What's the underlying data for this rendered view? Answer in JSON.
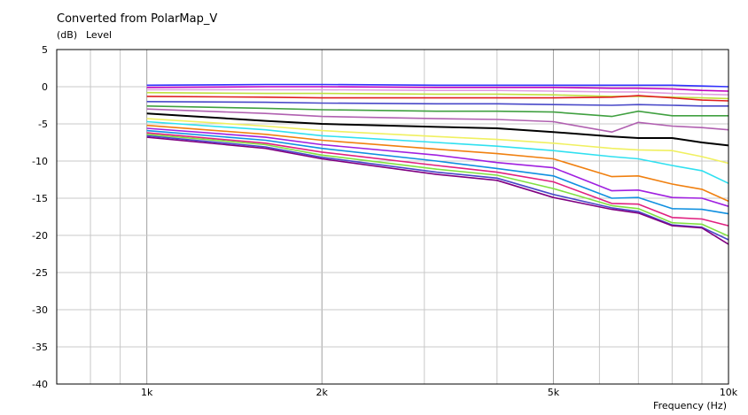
{
  "chart_data": {
    "type": "line",
    "title": "Converted from PolarMap_V",
    "ylabel_unit": "(dB)",
    "ylabel": "Level",
    "xlabel": "Frequency  (Hz)",
    "x_scale": "log",
    "xlim": [
      700,
      10000
    ],
    "ylim": [
      -40,
      5
    ],
    "grid": true,
    "x_ticks": [
      {
        "value": 1000,
        "label": "1k"
      },
      {
        "value": 2000,
        "label": "2k"
      },
      {
        "value": 5000,
        "label": "5k"
      },
      {
        "value": 10000,
        "label": "10k"
      }
    ],
    "y_ticks": [
      {
        "value": 5,
        "label": "5"
      },
      {
        "value": 0,
        "label": "0"
      },
      {
        "value": -5,
        "label": "-5"
      },
      {
        "value": -10,
        "label": "-10"
      },
      {
        "value": -15,
        "label": "-15"
      },
      {
        "value": -20,
        "label": "-20"
      },
      {
        "value": -25,
        "label": "-25"
      },
      {
        "value": -30,
        "label": "-30"
      },
      {
        "value": -35,
        "label": "-35"
      },
      {
        "value": -40,
        "label": "-40"
      }
    ],
    "x": [
      1000,
      1600,
      2000,
      3150,
      4000,
      5000,
      6300,
      7000,
      8000,
      9000,
      10000
    ],
    "series": [
      {
        "color": "#3030ff",
        "values": [
          0.2,
          0.3,
          0.3,
          0.2,
          0.2,
          0.2,
          0.2,
          0.2,
          0.2,
          0.1,
          0.0
        ]
      },
      {
        "color": "#c000c0",
        "values": [
          -0.1,
          0.0,
          0.0,
          -0.1,
          -0.1,
          -0.1,
          -0.2,
          -0.2,
          -0.3,
          -0.5,
          -0.6
        ]
      },
      {
        "color": "#e0a0e0",
        "values": [
          -0.4,
          -0.4,
          -0.4,
          -0.5,
          -0.5,
          -0.6,
          -0.7,
          -0.7,
          -0.9,
          -1.0,
          -1.1
        ]
      },
      {
        "color": "#c0e040",
        "values": [
          -0.8,
          -0.9,
          -0.9,
          -1.0,
          -1.0,
          -1.1,
          -1.3,
          -1.3,
          -1.4,
          -1.5,
          -1.6
        ]
      },
      {
        "color": "#e02020",
        "values": [
          -1.3,
          -1.4,
          -1.5,
          -1.5,
          -1.5,
          -1.5,
          -1.4,
          -1.2,
          -1.5,
          -1.8,
          -1.9
        ]
      },
      {
        "color": "#4848c8",
        "values": [
          -2.0,
          -2.1,
          -2.2,
          -2.3,
          -2.3,
          -2.4,
          -2.5,
          -2.4,
          -2.5,
          -2.6,
          -2.6
        ]
      },
      {
        "color": "#40a040",
        "values": [
          -2.6,
          -2.9,
          -3.1,
          -3.3,
          -3.3,
          -3.4,
          -4.0,
          -3.3,
          -3.9,
          -3.9,
          -3.9
        ]
      },
      {
        "color": "#b060b0",
        "values": [
          -3.0,
          -3.6,
          -4.0,
          -4.3,
          -4.4,
          -4.7,
          -6.1,
          -4.8,
          -5.3,
          -5.5,
          -5.8
        ]
      },
      {
        "color": "#000000",
        "values": [
          -3.6,
          -4.6,
          -5.0,
          -5.4,
          -5.6,
          -6.1,
          -6.7,
          -6.9,
          -6.9,
          -7.5,
          -7.9
        ]
      },
      {
        "color": "#f0f060",
        "values": [
          -4.3,
          -5.3,
          -5.9,
          -6.7,
          -7.1,
          -7.6,
          -8.3,
          -8.5,
          -8.6,
          -9.4,
          -10.3
        ]
      },
      {
        "color": "#30e0f0",
        "values": [
          -4.7,
          -5.8,
          -6.6,
          -7.5,
          -8.0,
          -8.6,
          -9.4,
          -9.7,
          -10.6,
          -11.3,
          -13.0
        ]
      },
      {
        "color": "#f08010",
        "values": [
          -5.2,
          -6.4,
          -7.2,
          -8.4,
          -9.0,
          -9.7,
          -12.1,
          -12.0,
          -13.1,
          -13.8,
          -15.4
        ]
      },
      {
        "color": "#a020e0",
        "values": [
          -5.6,
          -6.8,
          -7.8,
          -9.2,
          -10.2,
          -10.9,
          -14.0,
          -13.9,
          -14.9,
          -15.0,
          -16.1
        ]
      },
      {
        "color": "#1090e0",
        "values": [
          -5.9,
          -7.2,
          -8.3,
          -10.0,
          -11.0,
          -12.0,
          -15.0,
          -14.9,
          -16.4,
          -16.5,
          -17.1
        ]
      },
      {
        "color": "#e02080",
        "values": [
          -6.2,
          -7.6,
          -8.8,
          -10.6,
          -11.5,
          -12.8,
          -15.7,
          -15.8,
          -17.6,
          -17.8,
          -18.7
        ]
      },
      {
        "color": "#80e040",
        "values": [
          -6.4,
          -7.8,
          -9.2,
          -11.1,
          -11.9,
          -13.7,
          -16.0,
          -16.4,
          -18.3,
          -18.5,
          -20.1
        ]
      },
      {
        "color": "#4848c8",
        "values": [
          -6.6,
          -8.1,
          -9.5,
          -11.5,
          -12.3,
          -14.5,
          -16.3,
          -16.8,
          -18.6,
          -18.9,
          -20.6
        ]
      },
      {
        "color": "#800080",
        "values": [
          -6.8,
          -8.3,
          -9.7,
          -11.8,
          -12.6,
          -14.9,
          -16.5,
          -17.0,
          -18.7,
          -19.0,
          -21.2
        ]
      }
    ]
  }
}
